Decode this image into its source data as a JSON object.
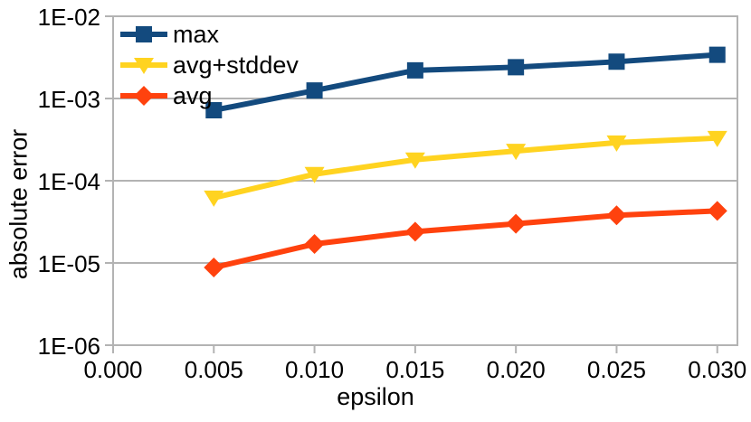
{
  "colors": {
    "background": "#ffffff",
    "text": "#000000",
    "grid": "#b3b3b3",
    "border": "#b3b3b3"
  },
  "chart_data": {
    "type": "line",
    "title": "",
    "xlabel": "epsilon",
    "ylabel": "absolute error",
    "x_scale": "linear",
    "y_scale": "log",
    "xlim": [
      0,
      0.031
    ],
    "ylim": [
      1e-06,
      0.01
    ],
    "grid": "horizontal-only",
    "legend_position": "top-left-inside",
    "x": [
      0.005,
      0.01,
      0.015,
      0.02,
      0.025,
      0.03
    ],
    "x_tick_values": [
      0,
      0.005,
      0.01,
      0.015,
      0.02,
      0.025,
      0.03
    ],
    "x_tick_labels": [
      "0.000",
      "0.005",
      "0.010",
      "0.015",
      "0.020",
      "0.025",
      "0.030"
    ],
    "y_tick_values": [
      0.01,
      0.001,
      0.0001,
      1e-05,
      1e-06
    ],
    "y_tick_labels": [
      "1E-02",
      "1E-03",
      "1E-04",
      "1E-05",
      "1E-06"
    ],
    "series": [
      {
        "name": "max",
        "color": "#134a7e",
        "marker": "square",
        "values": [
          0.00072,
          0.00125,
          0.0022,
          0.0024,
          0.0028,
          0.0034
        ]
      },
      {
        "name": "avg+stddev",
        "color": "#ffd320",
        "marker": "triangle-down",
        "values": [
          6.2e-05,
          0.00012,
          0.00018,
          0.00023,
          0.00029,
          0.00033
        ]
      },
      {
        "name": "avg",
        "color": "#ff420e",
        "marker": "diamond",
        "values": [
          8.8e-06,
          1.7e-05,
          2.4e-05,
          3e-05,
          3.8e-05,
          4.3e-05
        ]
      }
    ]
  }
}
